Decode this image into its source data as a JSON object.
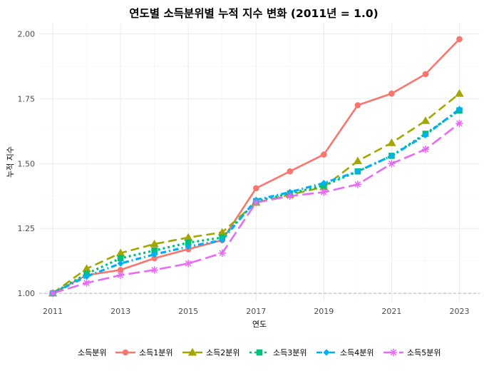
{
  "chart_data": {
    "type": "line",
    "title": "연도별 소득분위별 누적 지수 변화 (2011년 = 1.0)",
    "xlabel": "연도",
    "ylabel": "누적 지수",
    "xlim": [
      2010.6,
      2023.6
    ],
    "ylim": [
      0.97,
      2.04
    ],
    "x_ticks": [
      2011,
      2013,
      2015,
      2017,
      2019,
      2021,
      2023
    ],
    "y_ticks": [
      1.0,
      1.25,
      1.5,
      1.75,
      2.0
    ],
    "y_tick_labels": [
      "1.00",
      "1.25",
      "1.50",
      "1.75",
      "2.00"
    ],
    "x": [
      2011,
      2012,
      2013,
      2014,
      2015,
      2016,
      2017,
      2018,
      2019,
      2020,
      2021,
      2022,
      2023
    ],
    "reference_line": 1.0,
    "legend_title": "소득분위",
    "legend_position": "bottom",
    "series": [
      {
        "name": "소득1분위",
        "color": "#F8766D",
        "marker": "circle",
        "values": [
          1.0,
          1.07,
          1.09,
          1.135,
          1.17,
          1.205,
          1.405,
          1.47,
          1.535,
          1.725,
          1.77,
          1.845,
          1.98
        ]
      },
      {
        "name": "소득2분위",
        "color": "#A3A500",
        "marker": "triangle",
        "values": [
          1.0,
          1.095,
          1.155,
          1.19,
          1.215,
          1.235,
          1.35,
          1.38,
          1.41,
          1.51,
          1.58,
          1.665,
          1.77
        ]
      },
      {
        "name": "소득3분위",
        "color": "#00BF7D",
        "marker": "square",
        "values": [
          1.0,
          1.075,
          1.135,
          1.165,
          1.195,
          1.215,
          1.355,
          1.385,
          1.415,
          1.47,
          1.53,
          1.615,
          1.705
        ]
      },
      {
        "name": "소득4분위",
        "color": "#00B0F6",
        "marker": "diamond",
        "values": [
          1.0,
          1.065,
          1.115,
          1.15,
          1.18,
          1.205,
          1.36,
          1.39,
          1.425,
          1.47,
          1.53,
          1.61,
          1.71
        ]
      },
      {
        "name": "소득5분위",
        "color": "#E76BF3",
        "marker": "star",
        "values": [
          1.0,
          1.04,
          1.07,
          1.09,
          1.115,
          1.155,
          1.35,
          1.375,
          1.39,
          1.42,
          1.5,
          1.555,
          1.655
        ]
      }
    ]
  }
}
